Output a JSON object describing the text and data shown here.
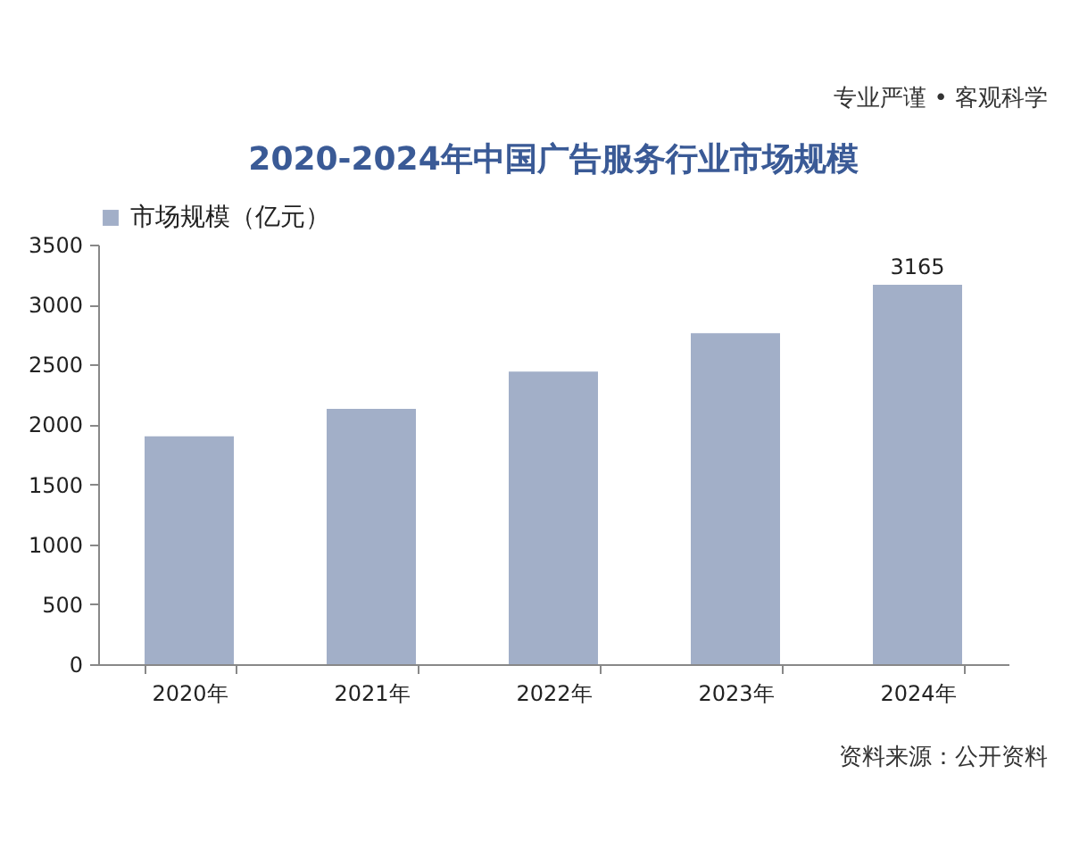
{
  "chart_data": {
    "type": "bar",
    "title": "2020-2024年中国广告服务行业市场规模",
    "categories": [
      "2020年",
      "2021年",
      "2022年",
      "2023年",
      "2024年"
    ],
    "series": [
      {
        "name": "市场规模（亿元）",
        "color": "#a2afc8",
        "values": [
          1900,
          2130,
          2440,
          2760,
          3165
        ],
        "value_labels": [
          null,
          null,
          null,
          null,
          "3165"
        ]
      }
    ],
    "ylim": [
      0,
      3500
    ],
    "yticks": [
      0,
      500,
      1000,
      1500,
      2000,
      2500,
      3000,
      3500
    ],
    "legend": "top",
    "annotations": [
      "专业严谨 • 客观科学",
      "资料来源：公开资料"
    ]
  }
}
